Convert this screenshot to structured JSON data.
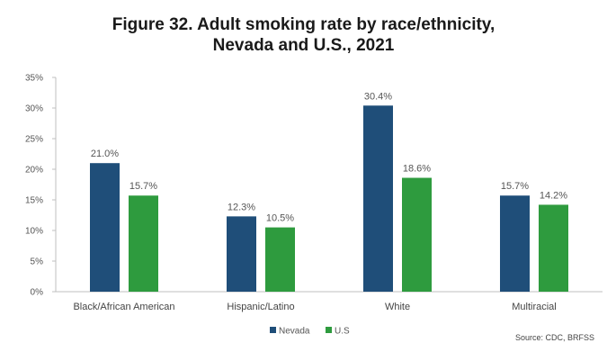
{
  "chart_data": {
    "type": "bar",
    "title_line1": "Figure 32. Adult smoking rate by race/ethnicity,",
    "title_line2": "Nevada and U.S., 2021",
    "categories": [
      "Black/African American",
      "Hispanic/Latino",
      "White",
      "Multiracial"
    ],
    "series": [
      {
        "name": "Nevada",
        "color": "#1f4e79",
        "values": [
          21.0,
          12.3,
          30.4,
          15.7
        ],
        "labels": [
          "21.0%",
          "12.3%",
          "30.4%",
          "15.7%"
        ]
      },
      {
        "name": "U.S",
        "color": "#2e9b3e",
        "values": [
          15.7,
          10.5,
          18.6,
          14.2
        ],
        "labels": [
          "15.7%",
          "10.5%",
          "18.6%",
          "14.2%"
        ]
      }
    ],
    "ylim": [
      0,
      35
    ],
    "yticks": [
      0,
      5,
      10,
      15,
      20,
      25,
      30,
      35
    ],
    "ytick_labels": [
      "0%",
      "5%",
      "10%",
      "15%",
      "20%",
      "25%",
      "30%",
      "35%"
    ],
    "grid": false,
    "legend_position": "bottom",
    "source": "Source: CDC, BRFSS"
  }
}
